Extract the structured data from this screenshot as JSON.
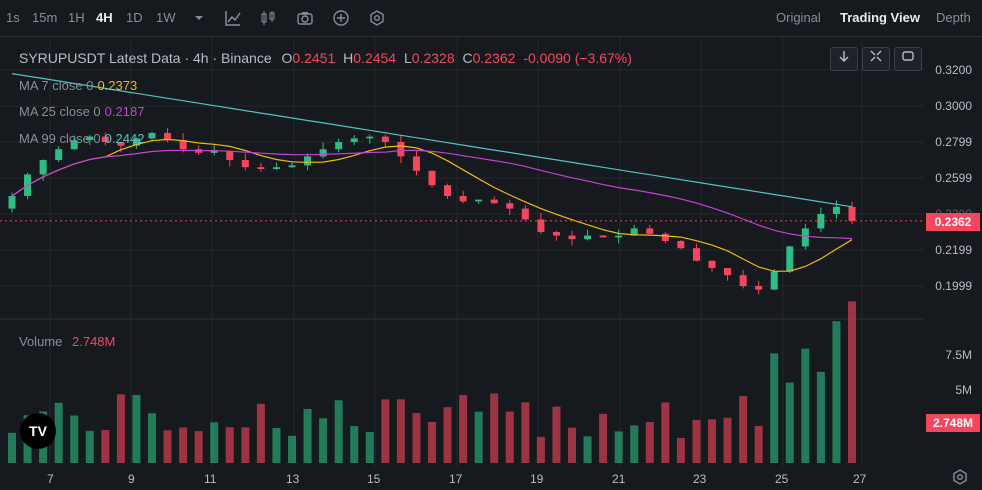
{
  "toolbar": {
    "intervals": [
      "1s",
      "15m",
      "1H",
      "4H",
      "1D",
      "1W"
    ],
    "active_interval": "4H",
    "views": [
      "Original",
      "Trading View",
      "Depth"
    ],
    "active_view": "Trading View"
  },
  "legend": {
    "title": "SYRUPUSDT Latest Data · 4h · Binance",
    "o_label": "O",
    "o": "0.2451",
    "h_label": "H",
    "h": "0.2454",
    "l_label": "L",
    "l": "0.2328",
    "c_label": "C",
    "c": "0.2362",
    "change": "-0.0090 (−3.67%)",
    "ma7_label": "MA 7 close 0",
    "ma7": "0.2373",
    "ma25_label": "MA 25 close 0",
    "ma25": "0.2187",
    "ma99_label": "MA 99 close 0",
    "ma99": "0.2442"
  },
  "volume": {
    "label": "Volume",
    "value": "2.748M",
    "tag": "2.748M"
  },
  "price_axis": [
    "0.3200",
    "0.3000",
    "0.2799",
    "0.2599",
    "0.2399",
    "0.2199",
    "0.1999"
  ],
  "volume_axis": [
    "7.5M",
    "5M"
  ],
  "current_price": "0.2362",
  "x_axis": [
    "7",
    "9",
    "11",
    "13",
    "15",
    "17",
    "19",
    "21",
    "23",
    "25",
    "27"
  ],
  "colors": {
    "up": "#2ebd85",
    "down": "#f6465d",
    "ma7": "#f0b90b",
    "ma25": "#c440d6",
    "ma99": "#4fc3c0",
    "bg": "#161a1e"
  },
  "logo": "TV",
  "chart_data": {
    "type": "candlestick",
    "title": "SYRUPUSDT Latest Data · 4h · Binance",
    "ylim": [
      0.19,
      0.33
    ],
    "x_ticks": [
      "7",
      "9",
      "11",
      "13",
      "15",
      "17",
      "19",
      "21",
      "23",
      "25",
      "27"
    ],
    "close_approx": [
      0.25,
      0.262,
      0.27,
      0.276,
      0.281,
      0.283,
      0.28,
      0.278,
      0.282,
      0.285,
      0.281,
      0.276,
      0.274,
      0.275,
      0.27,
      0.266,
      0.265,
      0.266,
      0.267,
      0.272,
      0.276,
      0.28,
      0.282,
      0.283,
      0.28,
      0.272,
      0.264,
      0.256,
      0.25,
      0.247,
      0.248,
      0.246,
      0.243,
      0.237,
      0.23,
      0.228,
      0.226,
      0.228,
      0.227,
      0.228,
      0.232,
      0.229,
      0.225,
      0.221,
      0.214,
      0.21,
      0.206,
      0.2,
      0.198,
      0.208,
      0.222,
      0.232,
      0.24,
      0.244,
      0.2362
    ],
    "volume_unit": "M",
    "last_volume": 2.748
  }
}
